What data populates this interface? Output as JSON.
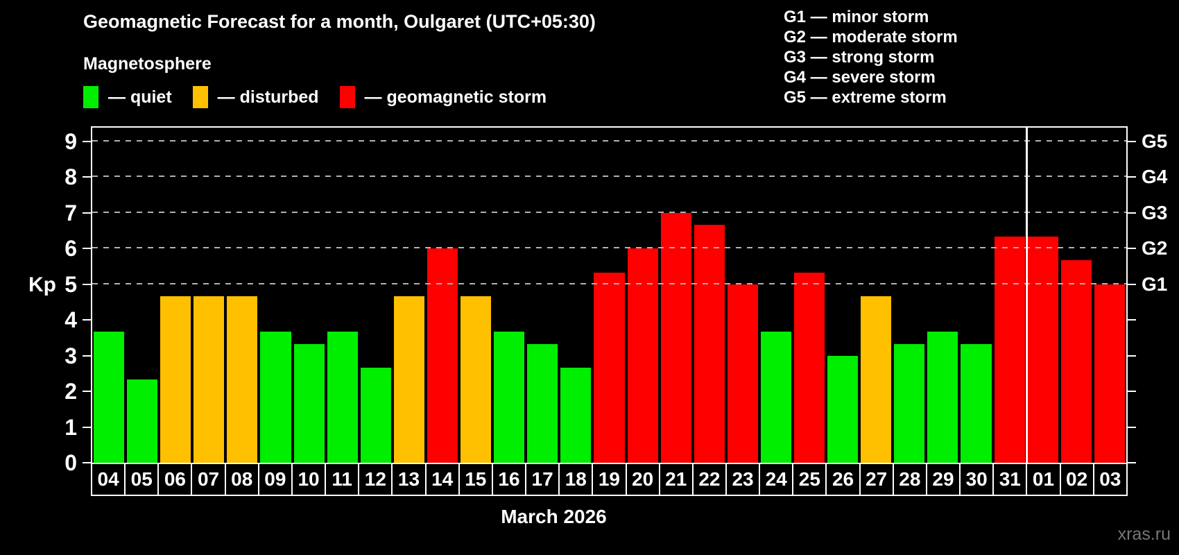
{
  "header": {
    "title": "Geomagnetic Forecast for a month, Oulgaret (UTC+05:30)",
    "subtitle": "Magnetosphere"
  },
  "legend": {
    "items": [
      {
        "key": "quiet",
        "label": "— quiet"
      },
      {
        "key": "disturbed",
        "label": "— disturbed"
      },
      {
        "key": "storm",
        "label": "— geomagnetic storm"
      }
    ]
  },
  "g_legend": {
    "items": [
      {
        "line": "G1 — minor storm"
      },
      {
        "line": "G2 — moderate storm"
      },
      {
        "line": "G3 — strong storm"
      },
      {
        "line": "G4 — severe storm"
      },
      {
        "line": "G5 — extreme storm"
      }
    ]
  },
  "colors": {
    "quiet": "#00ee00",
    "disturbed": "#ffc000",
    "storm": "#ff0000",
    "grid": "#b3b3b3",
    "axis": "#ffffff",
    "watermark": "#777777",
    "background": "#000000"
  },
  "axes": {
    "y_label": "Kp",
    "y_ticks": [
      0,
      1,
      2,
      3,
      4,
      5,
      6,
      7,
      8,
      9
    ],
    "right_scale": [
      {
        "kp": 5,
        "label": "G1"
      },
      {
        "kp": 6,
        "label": "G2"
      },
      {
        "kp": 7,
        "label": "G3"
      },
      {
        "kp": 8,
        "label": "G4"
      },
      {
        "kp": 9,
        "label": "G5"
      }
    ],
    "month_label": "March 2026"
  },
  "watermark": "xras.ru",
  "chart_data": {
    "type": "bar",
    "title": "Geomagnetic Forecast for a month, Oulgaret (UTC+05:30)",
    "xlabel": "March 2026",
    "ylabel": "Kp",
    "ylim": [
      0,
      9
    ],
    "plot_top_kp": 9.38,
    "grid": "dashed horizontal at Kp 5-9",
    "gridlines_kp": [
      5,
      6,
      7,
      8,
      9
    ],
    "categories": [
      "04",
      "05",
      "06",
      "07",
      "08",
      "09",
      "10",
      "11",
      "12",
      "13",
      "14",
      "15",
      "16",
      "17",
      "18",
      "19",
      "20",
      "21",
      "22",
      "23",
      "24",
      "25",
      "26",
      "27",
      "28",
      "29",
      "30",
      "31",
      "01",
      "02",
      "03"
    ],
    "values": [
      3.67,
      2.33,
      4.67,
      4.67,
      4.67,
      3.67,
      3.33,
      3.67,
      2.67,
      4.67,
      6.0,
      4.67,
      3.67,
      3.33,
      2.67,
      5.33,
      6.0,
      7.0,
      6.67,
      5.0,
      3.67,
      5.33,
      3.0,
      4.67,
      3.33,
      3.67,
      3.33,
      6.33,
      6.33,
      5.67,
      5.0
    ],
    "statuses": [
      "quiet",
      "quiet",
      "disturbed",
      "disturbed",
      "disturbed",
      "quiet",
      "quiet",
      "quiet",
      "quiet",
      "disturbed",
      "storm",
      "disturbed",
      "quiet",
      "quiet",
      "quiet",
      "storm",
      "storm",
      "storm",
      "storm",
      "storm",
      "quiet",
      "storm",
      "quiet",
      "disturbed",
      "quiet",
      "quiet",
      "quiet",
      "storm",
      "storm",
      "storm",
      "storm"
    ],
    "status_thresholds": {
      "quiet": "Kp < 4",
      "disturbed": "4 <= Kp < 5",
      "storm": "Kp >= 5"
    },
    "month_separator_after_index": 27
  }
}
